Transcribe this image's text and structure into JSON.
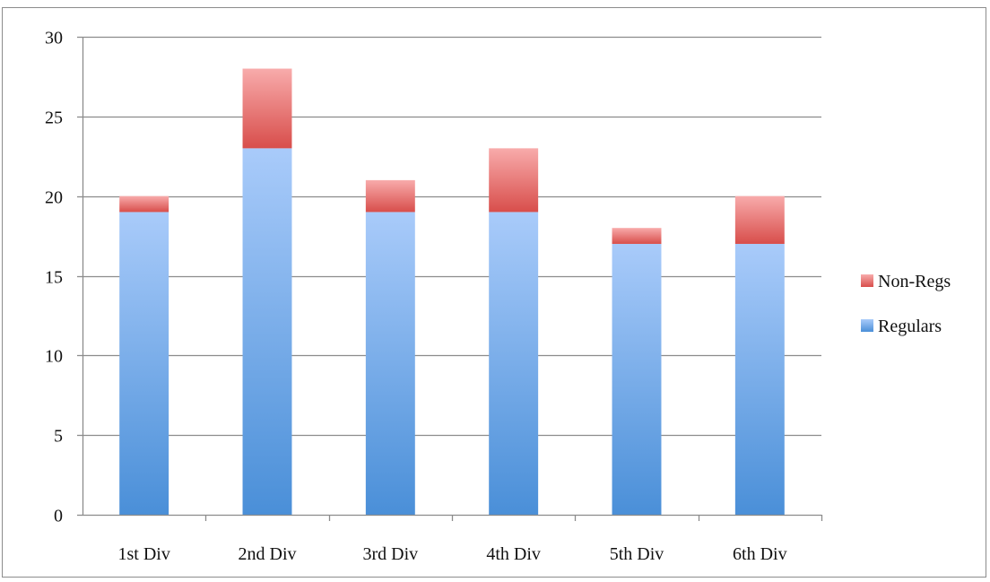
{
  "chart_data": {
    "type": "bar",
    "stacked": true,
    "categories": [
      "1st Div",
      "2nd Div",
      "3rd Div",
      "4th Div",
      "5th Div",
      "6th Div"
    ],
    "series": [
      {
        "name": "Regulars",
        "values": [
          19,
          23,
          19,
          19,
          17,
          17
        ],
        "color_top": "#a9cbfa",
        "color_bottom": "#4a8fd8"
      },
      {
        "name": "Non-Regs",
        "values": [
          1,
          5,
          2,
          4,
          1,
          3
        ],
        "color_top": "#f8abab",
        "color_bottom": "#d84e4b"
      }
    ],
    "title": "",
    "xlabel": "",
    "ylabel": "",
    "ylim": [
      0,
      30
    ],
    "yticks": [
      "0",
      "5",
      "10",
      "15",
      "20",
      "25",
      "30"
    ],
    "grid": true,
    "legend": {
      "position": "right",
      "entries": [
        "Non-Regs",
        "Regulars"
      ]
    }
  }
}
